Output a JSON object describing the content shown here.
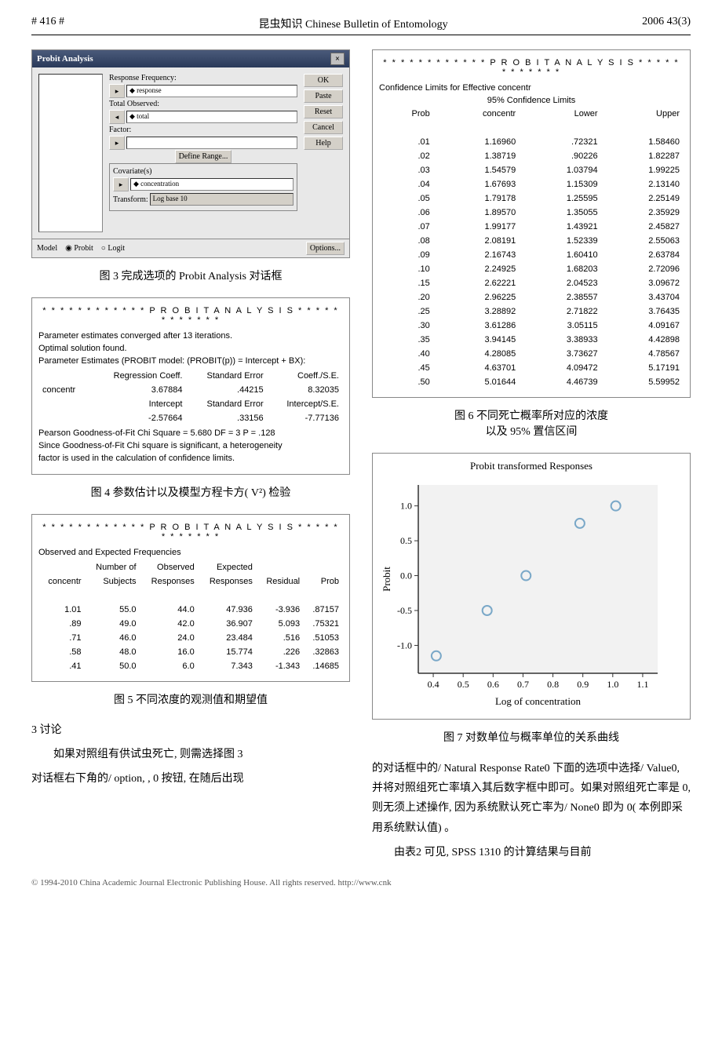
{
  "header": {
    "left": "# 416 #",
    "center_cn": "昆虫知识",
    "center_en": "Chinese Bulletin of Entomology",
    "right": "2006 43(3)"
  },
  "dialog": {
    "title": "Probit Analysis",
    "fields": {
      "resp_freq": "Response Frequency:",
      "resp_val": "response",
      "total_obs": "Total Observed:",
      "total_val": "total",
      "factor": "Factor:",
      "define": "Define Range...",
      "covar": "Covariate(s)",
      "covar_val": "concentration",
      "transform": "Transform:",
      "transform_val": "Log base 10"
    },
    "buttons": {
      "ok": "OK",
      "paste": "Paste",
      "reset": "Reset",
      "cancel": "Cancel",
      "help": "Help",
      "options": "Options..."
    },
    "model": {
      "label": "Model",
      "probit": "Probit",
      "logit": "Logit"
    }
  },
  "fig3": "图 3   完成选项的 Probit Analysis 对话框",
  "panel4": {
    "title": "P R O B I T     A N A L Y S I S",
    "l1": "Parameter estimates converged after 13 iterations.",
    "l2": "Optimal solution found.",
    "l3": "Parameter Estimates (PROBIT model:  (PROBIT(p)) = Intercept + BX):",
    "h1": "Regression Coeff.",
    "h2": "Standard Error",
    "h3": "Coeff./S.E.",
    "r1c0": "concentr",
    "r1c1": "3.67884",
    "r1c2": ".44215",
    "r1c3": "8.32035",
    "h4": "Intercept",
    "h5": "Standard Error",
    "h6": "Intercept/S.E.",
    "r2c1": "-2.57664",
    "r2c2": ".33156",
    "r2c3": "-7.77136",
    "pearson": "Pearson   Goodness-of-Fit   Chi Square =   5.680   DF = 3   P =   .128",
    "note1": "Since Goodness-of-Fit Chi square is significant, a heterogeneity",
    "note2": "factor is used in the calculation of confidence limits."
  },
  "fig4": "图 4   参数估计以及模型方程卡方( V²) 检验",
  "panel5": {
    "title": "P R O B I T     A N A L Y S I S",
    "sub": "Observed and Expected Frequencies",
    "cols": [
      "",
      "Number of",
      "Observed",
      "Expected",
      "",
      ""
    ],
    "cols2": [
      "concentr",
      "Subjects",
      "Responses",
      "Responses",
      "Residual",
      "Prob"
    ],
    "rows": [
      [
        "1.01",
        "55.0",
        "44.0",
        "47.936",
        "-3.936",
        ".87157"
      ],
      [
        ".89",
        "49.0",
        "42.0",
        "36.907",
        "5.093",
        ".75321"
      ],
      [
        ".71",
        "46.0",
        "24.0",
        "23.484",
        ".516",
        ".51053"
      ],
      [
        ".58",
        "48.0",
        "16.0",
        "15.774",
        ".226",
        ".32863"
      ],
      [
        ".41",
        "50.0",
        "6.0",
        "7.343",
        "-1.343",
        ".14685"
      ]
    ]
  },
  "fig5": "图 5   不同浓度的观测值和期望值",
  "section3": "3   讨论",
  "para1": "如果对照组有供试虫死亡, 则需选择图 3",
  "para2": "对话框右下角的/ option, , 0 按钮, 在随后出现",
  "panel6": {
    "title": "P R O B I T     A N A L Y S I S",
    "sub": "Confidence Limits for Effective concentr",
    "header": "95% Confidence Limits",
    "cols": [
      "Prob",
      "concentr",
      "Lower",
      "Upper"
    ],
    "rows": [
      [
        ".01",
        "1.16960",
        ".72321",
        "1.58460"
      ],
      [
        ".02",
        "1.38719",
        ".90226",
        "1.82287"
      ],
      [
        ".03",
        "1.54579",
        "1.03794",
        "1.99225"
      ],
      [
        ".04",
        "1.67693",
        "1.15309",
        "2.13140"
      ],
      [
        ".05",
        "1.79178",
        "1.25595",
        "2.25149"
      ],
      [
        ".06",
        "1.89570",
        "1.35055",
        "2.35929"
      ],
      [
        ".07",
        "1.99177",
        "1.43921",
        "2.45827"
      ],
      [
        ".08",
        "2.08191",
        "1.52339",
        "2.55063"
      ],
      [
        ".09",
        "2.16743",
        "1.60410",
        "2.63784"
      ],
      [
        ".10",
        "2.24925",
        "1.68203",
        "2.72096"
      ],
      [
        ".15",
        "2.62221",
        "2.04523",
        "3.09672"
      ],
      [
        ".20",
        "2.96225",
        "2.38557",
        "3.43704"
      ],
      [
        ".25",
        "3.28892",
        "2.71822",
        "3.76435"
      ],
      [
        ".30",
        "3.61286",
        "3.05115",
        "4.09167"
      ],
      [
        ".35",
        "3.94145",
        "3.38933",
        "4.42898"
      ],
      [
        ".40",
        "4.28085",
        "3.73627",
        "4.78567"
      ],
      [
        ".45",
        "4.63701",
        "4.09472",
        "5.17191"
      ],
      [
        ".50",
        "5.01644",
        "4.46739",
        "5.59952"
      ]
    ]
  },
  "fig6a": "图 6   不同死亡概率所对应的浓度",
  "fig6b": "以及 95% 置信区间",
  "chart": {
    "title": "Probit transformed Responses",
    "xlabel": "Log of concentration",
    "ylabel": "Probit",
    "xmin": 0.35,
    "xmax": 1.15,
    "ymin": -1.4,
    "ymax": 1.3,
    "xticks": [
      0.4,
      0.5,
      0.6,
      0.7,
      0.8,
      0.9,
      1.0,
      1.1
    ],
    "yticks": [
      -1.0,
      -0.5,
      0.0,
      0.5,
      1.0
    ],
    "points": [
      [
        0.41,
        -1.15
      ],
      [
        0.58,
        -0.5
      ],
      [
        0.71,
        0.0
      ],
      [
        0.89,
        0.75
      ],
      [
        1.01,
        1.0
      ]
    ],
    "point_color": "#7aa8c8",
    "axis_color": "#333",
    "bg": "#f2f2f2"
  },
  "fig7": "图 7   对数单位与概率单位的关系曲线",
  "para3": "的对话框中的/ Natural Response Rate0 下面的选项中选择/ Value0, 并将对照组死亡率填入其后数字框中即可。如果对照组死亡率是 0, 则无须上述操作, 因为系统默认死亡率为/ None0 即为 0( 本例即采用系统默认值) 。",
  "para4": "由表2 可见, SPSS 1310 的计算结果与目前",
  "footer": "© 1994-2010 China Academic Journal Electronic Publishing House. All rights reserved.    http://www.cnk"
}
